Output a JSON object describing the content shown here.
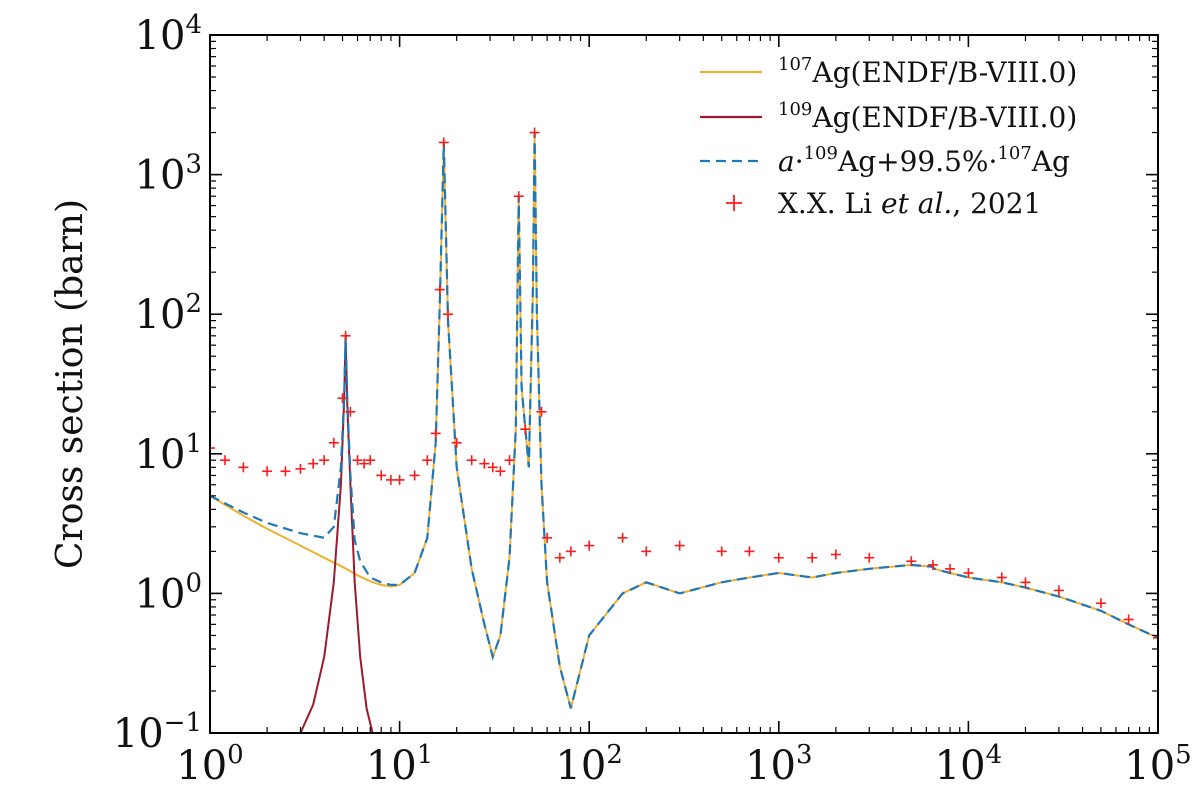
{
  "chart_data": {
    "type": "line",
    "title": "",
    "xlabel": "",
    "ylabel": "Cross section (barn)",
    "xscale": "log",
    "yscale": "log",
    "xlim": [
      1,
      100000
    ],
    "ylim": [
      0.1,
      10000
    ],
    "grid": false,
    "legend_position": "top-right",
    "x_ticks": [
      {
        "base": "10",
        "exp": "0"
      },
      {
        "base": "10",
        "exp": "1"
      },
      {
        "base": "10",
        "exp": "2"
      },
      {
        "base": "10",
        "exp": "3"
      },
      {
        "base": "10",
        "exp": "4"
      },
      {
        "base": "10",
        "exp": "5"
      }
    ],
    "y_ticks": [
      {
        "base": "10",
        "exp": "−1"
      },
      {
        "base": "10",
        "exp": "0"
      },
      {
        "base": "10",
        "exp": "1"
      },
      {
        "base": "10",
        "exp": "2"
      },
      {
        "base": "10",
        "exp": "3"
      },
      {
        "base": "10",
        "exp": "4"
      }
    ],
    "series": [
      {
        "label_parts": {
          "sup": "107",
          "main": "Ag(ENDF/B-VIII.0)"
        },
        "style": "solid",
        "color": "#f0b030",
        "x": [
          1,
          1.5,
          2,
          3,
          4,
          5,
          6,
          7,
          8,
          9,
          10,
          12,
          14,
          15.5,
          16.3,
          17.1,
          18,
          20,
          24,
          28,
          31,
          34,
          38,
          41,
          42.5,
          44,
          48,
          50.5,
          51.5,
          53,
          56,
          60,
          70,
          80,
          100,
          150,
          200,
          300,
          500,
          700,
          1000,
          1500,
          2000,
          3000,
          5000,
          6500,
          6600,
          8000,
          10000,
          15000,
          20000,
          30000,
          50000,
          70000,
          100000
        ],
        "y": [
          5.0,
          3.6,
          2.9,
          2.2,
          1.8,
          1.55,
          1.35,
          1.22,
          1.15,
          1.12,
          1.15,
          1.4,
          2.5,
          12,
          120,
          1700,
          90,
          8,
          1.5,
          0.6,
          0.35,
          0.5,
          1.8,
          15,
          700,
          30,
          8,
          150,
          2000,
          100,
          6,
          1.2,
          0.3,
          0.15,
          0.5,
          1.0,
          1.2,
          1.0,
          1.2,
          1.3,
          1.4,
          1.3,
          1.4,
          1.5,
          1.6,
          1.55,
          1.5,
          1.4,
          1.3,
          1.2,
          1.1,
          0.95,
          0.75,
          0.6,
          0.48
        ]
      },
      {
        "label_parts": {
          "sup": "109",
          "main": "Ag(ENDF/B-VIII.0)"
        },
        "style": "solid",
        "color": "#9b1b2e",
        "x": [
          3,
          3.5,
          4,
          4.5,
          4.9,
          5.1,
          5.19,
          5.3,
          5.5,
          5.8,
          6.2,
          6.7,
          7.2
        ],
        "y": [
          0.1,
          0.16,
          0.35,
          1.2,
          6,
          25,
          70,
          22,
          6,
          1.2,
          0.35,
          0.15,
          0.1
        ]
      },
      {
        "label_parts": {
          "italic": "a",
          "mid": "·",
          "sup1": "109",
          "mid2": "Ag+99.5%·",
          "sup2": "107",
          "main": "Ag"
        },
        "style": "dashed",
        "color": "#1f77b4",
        "x": [
          1,
          1.5,
          2,
          3,
          4,
          4.5,
          4.9,
          5.1,
          5.19,
          5.3,
          5.5,
          5.8,
          6.2,
          7,
          8,
          9,
          10,
          12,
          14,
          15.5,
          16.3,
          17.1,
          18,
          20,
          24,
          28,
          31,
          34,
          38,
          41,
          42.5,
          44,
          48,
          50.5,
          51.5,
          53,
          56,
          60,
          70,
          80,
          100,
          150,
          200,
          300,
          500,
          700,
          1000,
          1500,
          2000,
          3000,
          5000,
          6500,
          6600,
          8000,
          10000,
          15000,
          20000,
          30000,
          50000,
          70000,
          100000
        ],
        "y": [
          5.0,
          3.8,
          3.2,
          2.7,
          2.5,
          3.0,
          8,
          26,
          70,
          24,
          7,
          2.4,
          1.7,
          1.3,
          1.2,
          1.15,
          1.15,
          1.4,
          2.5,
          12,
          120,
          1700,
          90,
          8,
          1.5,
          0.6,
          0.35,
          0.5,
          1.8,
          15,
          700,
          30,
          8,
          150,
          2000,
          100,
          6,
          1.2,
          0.3,
          0.15,
          0.5,
          1.0,
          1.2,
          1.0,
          1.2,
          1.3,
          1.4,
          1.3,
          1.4,
          1.5,
          1.6,
          1.55,
          1.5,
          1.4,
          1.3,
          1.2,
          1.1,
          0.95,
          0.75,
          0.6,
          0.48
        ]
      },
      {
        "label_parts": {
          "main": "X.X. Li ",
          "italic": "et al.",
          "tail": ", 2021"
        },
        "style": "markers",
        "marker": "+",
        "color": "#ff1a1a",
        "x": [
          1,
          1.2,
          1.5,
          2,
          2.5,
          3,
          3.5,
          4,
          4.5,
          5,
          5.19,
          5.5,
          6,
          6.5,
          7,
          8,
          9,
          10,
          12,
          14,
          15.5,
          16.3,
          17.1,
          18,
          20,
          24,
          28,
          31,
          34,
          38,
          42.5,
          46,
          51.5,
          56,
          60,
          70,
          80,
          100,
          150,
          200,
          300,
          500,
          700,
          1000,
          1500,
          2000,
          3000,
          5000,
          6500,
          8000,
          10000,
          15000,
          20000,
          30000,
          50000,
          70000,
          100000
        ],
        "y": [
          11,
          9,
          8,
          7.5,
          7.5,
          7.8,
          8.5,
          9,
          12,
          25,
          70,
          20,
          9,
          8.5,
          9,
          7,
          6.5,
          6.5,
          7,
          9,
          14,
          150,
          1700,
          100,
          12,
          9,
          8.5,
          8,
          7.5,
          9,
          700,
          15,
          2000,
          20,
          2.5,
          1.8,
          2.0,
          2.2,
          2.5,
          2.0,
          2.2,
          2.0,
          2.0,
          1.8,
          1.8,
          1.9,
          1.8,
          1.7,
          1.6,
          1.5,
          1.4,
          1.3,
          1.2,
          1.05,
          0.85,
          0.65,
          0.48
        ]
      }
    ]
  }
}
